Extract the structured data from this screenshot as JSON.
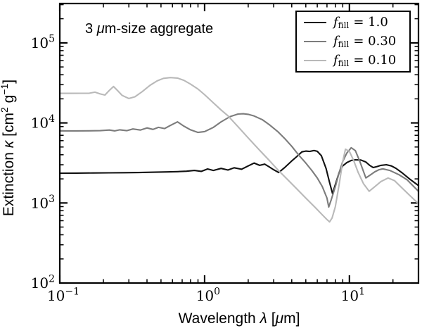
{
  "figure": {
    "background": "#ffffff",
    "annotation": "3 μm-size aggregate",
    "annotation_parts": [
      {
        "t": "3 "
      },
      {
        "t": "μ",
        "i": true
      },
      {
        "t": "m-size aggregate"
      }
    ],
    "x_axis": {
      "label": "Wavelength λ [μm]",
      "label_parts": [
        {
          "t": "Wavelength "
        },
        {
          "t": "λ",
          "i": true
        },
        {
          "t": " ["
        },
        {
          "t": "μ",
          "i": true
        },
        {
          "t": "m]"
        }
      ],
      "scale": "log",
      "ticks": [
        {
          "value": 0.1,
          "base": "10",
          "exp": "−1"
        },
        {
          "value": 1,
          "base": "10",
          "exp": "0"
        },
        {
          "value": 10,
          "base": "10",
          "exp": "1"
        }
      ]
    },
    "y_axis": {
      "label": "Extinction κ [cm² g⁻¹]",
      "label_parts": [
        {
          "t": "Extinction "
        },
        {
          "t": "κ",
          "i": true
        },
        {
          "t": " [cm"
        },
        {
          "t": "2",
          "sup": true
        },
        {
          "t": " g"
        },
        {
          "t": "−1",
          "sup": true
        },
        {
          "t": "]"
        }
      ],
      "scale": "log",
      "ticks": [
        {
          "value": 100,
          "base": "10",
          "exp": "2"
        },
        {
          "value": 1000,
          "base": "10",
          "exp": "3"
        },
        {
          "value": 10000,
          "base": "10",
          "exp": "4"
        },
        {
          "value": 100000,
          "base": "10",
          "exp": "5"
        }
      ]
    },
    "legend": {
      "position": "upper right",
      "entries": [
        {
          "var": "f",
          "sub": "fill",
          "value": "= 1.0",
          "color": "#111111"
        },
        {
          "var": "f",
          "sub": "fill",
          "value": "= 0.30",
          "color": "#7c7c7c"
        },
        {
          "var": "f",
          "sub": "fill",
          "value": "= 0.10",
          "color": "#b9b9b9"
        }
      ]
    }
  },
  "chart_data": {
    "type": "line",
    "title": "3 μm-size aggregate",
    "xlabel": "Wavelength λ [μm]",
    "ylabel": "Extinction κ [cm² g⁻¹]",
    "xscale": "log",
    "yscale": "log",
    "xlim": [
      0.1,
      30
    ],
    "ylim": [
      100,
      310000
    ],
    "grid": false,
    "legend_position": "upper right",
    "xtick_labels": [
      "10⁻¹",
      "10⁰",
      "10¹"
    ],
    "ytick_labels": [
      "10²",
      "10³",
      "10⁴",
      "10⁵"
    ],
    "series": [
      {
        "name": "f_fill = 1.0",
        "color": "#111111",
        "x": [
          0.1,
          0.13,
          0.17,
          0.22,
          0.28,
          0.35,
          0.45,
          0.55,
          0.65,
          0.75,
          0.85,
          0.95,
          1.05,
          1.15,
          1.3,
          1.45,
          1.6,
          1.8,
          2.0,
          2.2,
          2.4,
          2.6,
          2.8,
          3.0,
          3.25,
          3.6,
          4.0,
          4.3,
          4.7,
          5.0,
          5.3,
          5.7,
          6.0,
          6.4,
          6.9,
          7.3,
          7.65,
          8.0,
          8.5,
          9.0,
          9.6,
          10.3,
          11.0,
          12.0,
          13.0,
          13.8,
          14.6,
          15.5,
          16.5,
          18.0,
          19.5,
          21.0,
          23.0,
          26.0,
          30.0
        ],
        "y": [
          2350,
          2360,
          2370,
          2380,
          2390,
          2400,
          2420,
          2440,
          2460,
          2490,
          2550,
          2480,
          2660,
          2550,
          2700,
          2580,
          2750,
          2640,
          2900,
          3150,
          2950,
          3060,
          2820,
          2600,
          2400,
          2800,
          3350,
          3750,
          4350,
          4450,
          4400,
          4520,
          4420,
          3900,
          2700,
          1800,
          1310,
          1700,
          2400,
          2900,
          3200,
          3400,
          3460,
          3440,
          3250,
          2950,
          2770,
          2850,
          2950,
          3000,
          2900,
          2700,
          2400,
          2000,
          1650
        ]
      },
      {
        "name": "f_fill = 0.30",
        "color": "#7c7c7c",
        "x": [
          0.1,
          0.13,
          0.16,
          0.19,
          0.22,
          0.24,
          0.26,
          0.29,
          0.32,
          0.36,
          0.4,
          0.44,
          0.48,
          0.53,
          0.58,
          0.65,
          0.72,
          0.8,
          0.9,
          1.0,
          1.15,
          1.3,
          1.5,
          1.7,
          1.85,
          2.0,
          2.2,
          2.5,
          2.8,
          3.2,
          3.6,
          4.0,
          4.5,
          5.0,
          5.5,
          6.0,
          6.5,
          7.0,
          7.2,
          7.5,
          8.0,
          8.5,
          9.0,
          9.6,
          10.3,
          11.0,
          11.8,
          13.0,
          14.0,
          15.0,
          16.0,
          17.0,
          19.0,
          22.0,
          25.0,
          30.0
        ],
        "y": [
          7950,
          7950,
          7960,
          8000,
          8150,
          7950,
          8200,
          8000,
          8400,
          8150,
          8650,
          8300,
          8800,
          8500,
          9300,
          10300,
          9100,
          8200,
          7600,
          7800,
          8800,
          10300,
          12000,
          12900,
          13000,
          12800,
          12200,
          11000,
          9500,
          7800,
          6300,
          5100,
          3900,
          3150,
          2550,
          2050,
          1600,
          1150,
          890,
          1100,
          1600,
          2400,
          3300,
          4200,
          4900,
          4500,
          3300,
          2050,
          2250,
          2450,
          2600,
          2670,
          2550,
          2250,
          1950,
          1400
        ]
      },
      {
        "name": "f_fill = 0.10",
        "color": "#b9b9b9",
        "x": [
          0.1,
          0.12,
          0.14,
          0.16,
          0.175,
          0.19,
          0.205,
          0.22,
          0.235,
          0.25,
          0.27,
          0.3,
          0.33,
          0.37,
          0.42,
          0.47,
          0.52,
          0.58,
          0.65,
          0.72,
          0.8,
          0.9,
          1.0,
          1.15,
          1.3,
          1.45,
          1.7,
          2.0,
          2.4,
          2.8,
          3.2,
          3.7,
          4.3,
          5.0,
          5.8,
          6.5,
          7.0,
          7.3,
          7.6,
          8.0,
          8.5,
          9.0,
          9.4,
          10.0,
          10.7,
          11.5,
          12.5,
          13.7,
          15.0,
          16.5,
          18.5,
          20.5,
          23.0,
          26.0,
          30.0
        ],
        "y": [
          23400,
          23400,
          23450,
          23500,
          24200,
          23000,
          22300,
          25500,
          28500,
          25500,
          22000,
          20200,
          21200,
          24500,
          29500,
          33500,
          36000,
          36800,
          36300,
          34000,
          30500,
          26500,
          22500,
          17800,
          14500,
          12300,
          9000,
          6500,
          4550,
          3400,
          2600,
          2000,
          1520,
          1150,
          880,
          710,
          620,
          580,
          650,
          900,
          1700,
          3300,
          4700,
          4400,
          3400,
          2400,
          1750,
          1400,
          1600,
          1850,
          2050,
          1900,
          1550,
          1250,
          980
        ]
      }
    ]
  }
}
